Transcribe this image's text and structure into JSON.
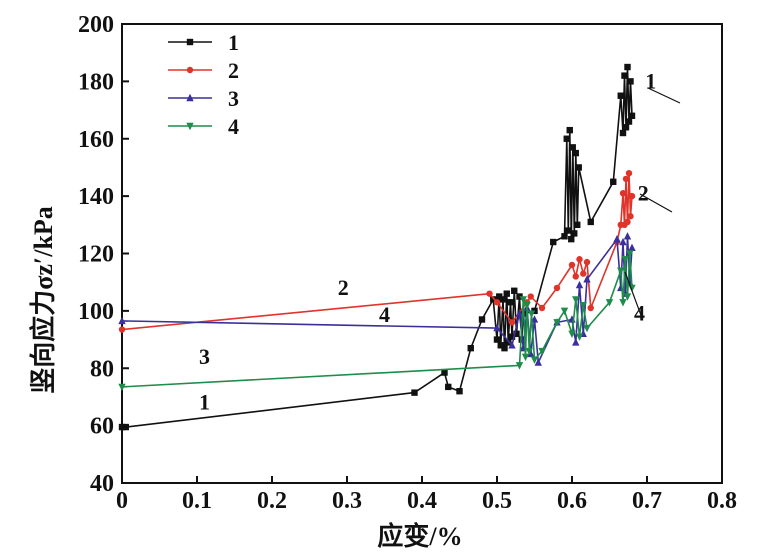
{
  "chart_data": {
    "type": "line",
    "xlabel": "应变/%",
    "ylabel": "竖向应力σz′/kPa",
    "xlim": [
      0,
      0.8
    ],
    "ylim": [
      40,
      200
    ],
    "xticks": [
      "0",
      "0.1",
      "0.2",
      "0.3",
      "0.4",
      "0.5",
      "0.6",
      "0.7",
      "0.8"
    ],
    "yticks": [
      "40",
      "60",
      "80",
      "100",
      "120",
      "140",
      "160",
      "180",
      "200"
    ],
    "legend_position": "top-left",
    "grid": false,
    "series": [
      {
        "name": "1",
        "color": "#111111",
        "marker": "square",
        "points": [
          [
            0,
            59.5
          ],
          [
            0.005,
            59.5
          ],
          [
            0.39,
            71.5
          ],
          [
            0.43,
            78.5
          ],
          [
            0.435,
            73.5
          ],
          [
            0.45,
            72
          ],
          [
            0.465,
            87
          ],
          [
            0.48,
            97
          ],
          [
            0.495,
            104
          ],
          [
            0.5,
            90
          ],
          [
            0.503,
            105
          ],
          [
            0.505,
            88
          ],
          [
            0.508,
            104
          ],
          [
            0.51,
            87
          ],
          [
            0.513,
            106
          ],
          [
            0.515,
            89
          ],
          [
            0.518,
            103
          ],
          [
            0.52,
            91
          ],
          [
            0.523,
            107
          ],
          [
            0.526,
            92
          ],
          [
            0.53,
            105
          ],
          [
            0.533,
            90
          ],
          [
            0.535,
            99
          ],
          [
            0.55,
            100
          ],
          [
            0.575,
            124
          ],
          [
            0.59,
            126
          ],
          [
            0.593,
            160
          ],
          [
            0.595,
            128
          ],
          [
            0.597,
            163
          ],
          [
            0.599,
            125
          ],
          [
            0.601,
            157
          ],
          [
            0.603,
            127
          ],
          [
            0.605,
            155
          ],
          [
            0.607,
            130
          ],
          [
            0.609,
            150
          ],
          [
            0.625,
            131
          ],
          [
            0.655,
            145
          ],
          [
            0.665,
            175
          ],
          [
            0.668,
            162
          ],
          [
            0.67,
            182
          ],
          [
            0.672,
            164
          ],
          [
            0.674,
            185
          ],
          [
            0.676,
            166
          ],
          [
            0.678,
            180
          ],
          [
            0.68,
            168
          ]
        ]
      },
      {
        "name": "2",
        "color": "#e0332a",
        "marker": "circle",
        "points": [
          [
            0,
            93.5
          ],
          [
            0.49,
            106
          ],
          [
            0.5,
            103
          ],
          [
            0.52,
            96
          ],
          [
            0.54,
            103
          ],
          [
            0.545,
            105
          ],
          [
            0.56,
            101
          ],
          [
            0.58,
            108
          ],
          [
            0.6,
            116
          ],
          [
            0.605,
            112
          ],
          [
            0.61,
            118
          ],
          [
            0.615,
            113
          ],
          [
            0.62,
            117
          ],
          [
            0.625,
            101
          ],
          [
            0.66,
            124
          ],
          [
            0.665,
            130
          ],
          [
            0.668,
            141
          ],
          [
            0.67,
            130
          ],
          [
            0.672,
            146
          ],
          [
            0.674,
            131
          ],
          [
            0.676,
            148
          ],
          [
            0.678,
            133
          ],
          [
            0.68,
            140
          ]
        ]
      },
      {
        "name": "3",
        "color": "#3a2f9c",
        "marker": "triangle-up",
        "points": [
          [
            0,
            96.5
          ],
          [
            0.5,
            94
          ],
          [
            0.52,
            88
          ],
          [
            0.53,
            99
          ],
          [
            0.535,
            87
          ],
          [
            0.54,
            101
          ],
          [
            0.545,
            85
          ],
          [
            0.55,
            97
          ],
          [
            0.555,
            82
          ],
          [
            0.58,
            96
          ],
          [
            0.6,
            97
          ],
          [
            0.605,
            89
          ],
          [
            0.61,
            109
          ],
          [
            0.615,
            92
          ],
          [
            0.62,
            111
          ],
          [
            0.66,
            125
          ],
          [
            0.665,
            108
          ],
          [
            0.668,
            124
          ],
          [
            0.671,
            106
          ],
          [
            0.674,
            126
          ],
          [
            0.677,
            110
          ],
          [
            0.68,
            122
          ]
        ]
      },
      {
        "name": "4",
        "color": "#1e8c4a",
        "marker": "triangle-down",
        "points": [
          [
            0,
            73.5
          ],
          [
            0.53,
            81
          ],
          [
            0.535,
            104
          ],
          [
            0.538,
            84
          ],
          [
            0.54,
            102
          ],
          [
            0.543,
            86
          ],
          [
            0.546,
            99
          ],
          [
            0.55,
            83
          ],
          [
            0.56,
            86
          ],
          [
            0.58,
            96
          ],
          [
            0.59,
            100
          ],
          [
            0.6,
            92
          ],
          [
            0.605,
            104
          ],
          [
            0.61,
            91
          ],
          [
            0.615,
            102
          ],
          [
            0.62,
            94
          ],
          [
            0.65,
            103
          ],
          [
            0.665,
            114
          ],
          [
            0.668,
            103
          ],
          [
            0.671,
            118
          ],
          [
            0.674,
            105
          ],
          [
            0.677,
            120
          ],
          [
            0.68,
            108
          ]
        ]
      }
    ],
    "annotations": [
      {
        "text": "1",
        "x": 0.11,
        "y": 68
      },
      {
        "text": "3",
        "x": 0.11,
        "y": 84
      },
      {
        "text": "2",
        "x": 0.295,
        "y": 108
      },
      {
        "text": "4",
        "x": 0.35,
        "y": 98.5
      },
      {
        "text": "1",
        "x": 0.705,
        "y": 180
      },
      {
        "text": "2",
        "x": 0.695,
        "y": 141
      },
      {
        "text": "4",
        "x": 0.69,
        "y": 99
      }
    ]
  }
}
